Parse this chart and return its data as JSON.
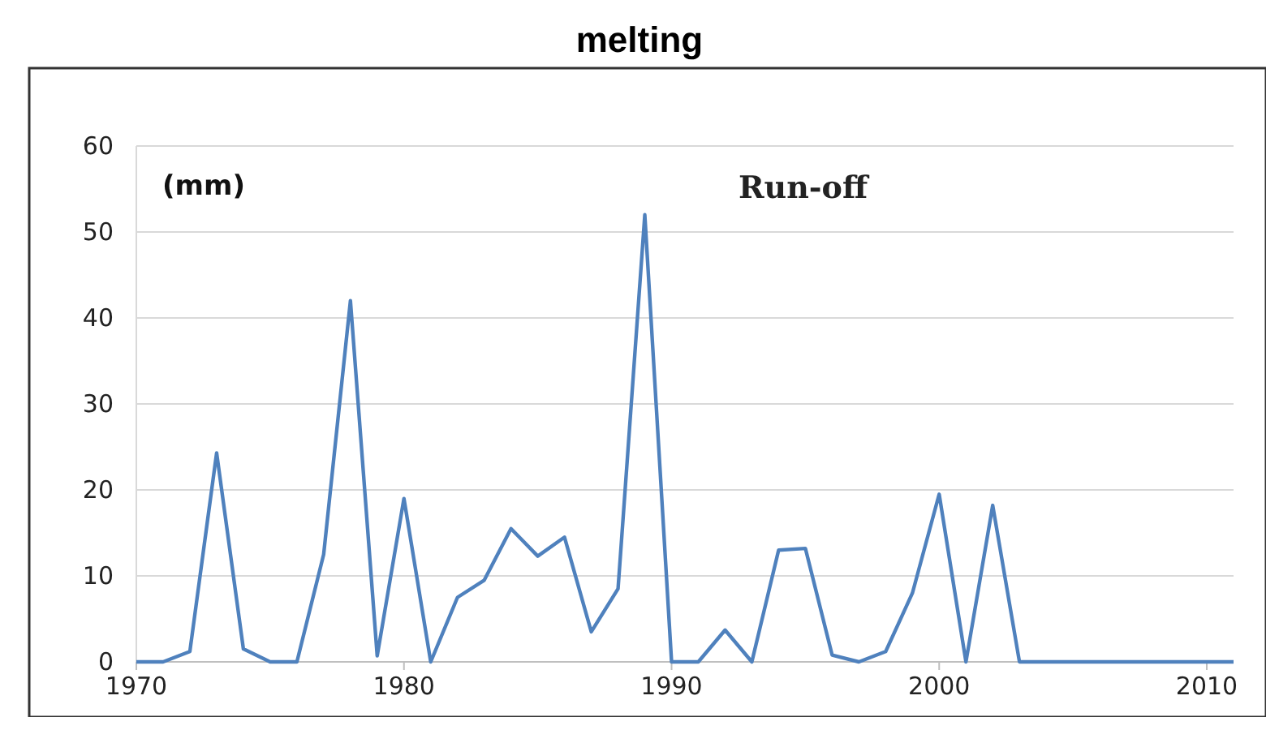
{
  "chart_data": {
    "type": "line",
    "title": "melting",
    "ylabel": "(mm)",
    "annotations": [
      "Run-off"
    ],
    "x": [
      1970,
      1971,
      1972,
      1973,
      1974,
      1975,
      1976,
      1977,
      1978,
      1979,
      1980,
      1981,
      1982,
      1983,
      1984,
      1985,
      1986,
      1987,
      1988,
      1989,
      1990,
      1991,
      1992,
      1993,
      1994,
      1995,
      1996,
      1997,
      1998,
      1999,
      2000,
      2001,
      2002,
      2003,
      2004,
      2005,
      2006,
      2007,
      2008,
      2009,
      2010,
      2011
    ],
    "series": [
      {
        "color": "#4f81bd",
        "values": [
          0,
          0,
          1.2,
          24.3,
          1.5,
          0,
          0,
          12.5,
          42,
          0.7,
          19,
          0,
          7.5,
          9.5,
          15.5,
          12.3,
          14.5,
          3.5,
          8.5,
          52,
          0,
          0,
          3.7,
          0,
          13,
          13.2,
          0.8,
          0,
          1.2,
          8,
          19.5,
          0,
          18.2,
          0,
          0,
          0,
          0,
          0,
          0,
          0,
          0,
          0
        ]
      }
    ],
    "xlim": [
      1970,
      2011
    ],
    "xticks": [
      1970,
      1980,
      1990,
      2000,
      2010
    ],
    "ylim": [
      0,
      60
    ],
    "yticks": [
      0,
      10,
      20,
      30,
      40,
      50,
      60
    ],
    "grid": "y",
    "marker": "none",
    "line_style": "solid"
  }
}
